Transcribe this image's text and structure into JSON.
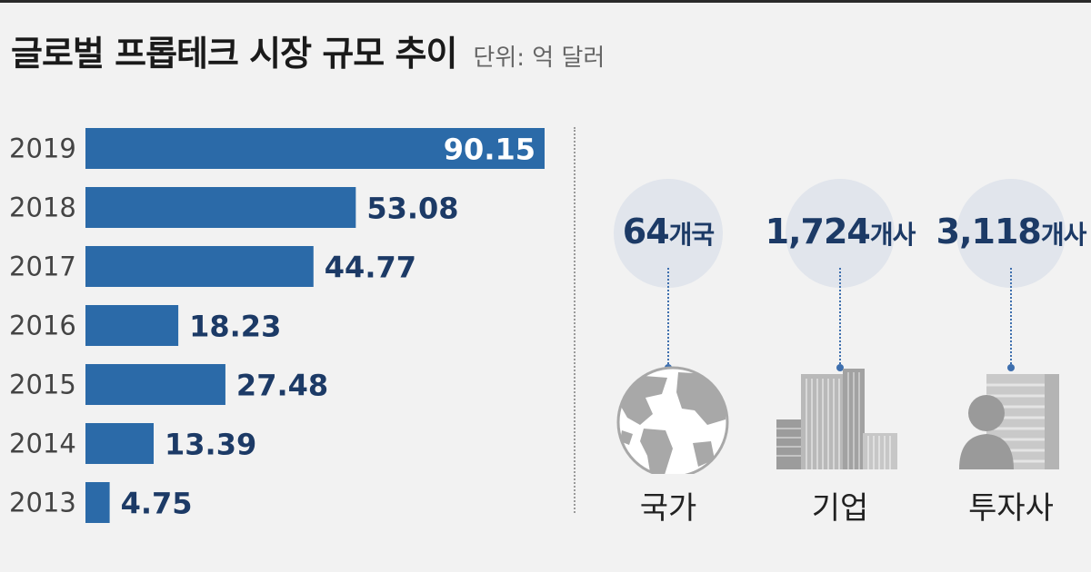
{
  "header": {
    "title": "글로벌 프롭테크 시장 규모 추이",
    "unit": "단위: 억 달러"
  },
  "chart_data": {
    "type": "bar",
    "orientation": "horizontal",
    "categories": [
      "2019",
      "2018",
      "2017",
      "2016",
      "2015",
      "2014",
      "2013"
    ],
    "values": [
      90.15,
      53.08,
      44.77,
      18.23,
      27.48,
      13.39,
      4.75
    ],
    "value_labels": [
      "90.15",
      "53.08",
      "44.77",
      "18.23",
      "27.48",
      "13.39",
      "4.75"
    ],
    "bar_color": "#2b6aa8",
    "value_label_color": "#1c3a66",
    "grid": false,
    "legend": "none"
  },
  "stats": [
    {
      "number": "64",
      "suffix": "개국",
      "label": "국가",
      "icon": "globe-icon"
    },
    {
      "number": "1,724",
      "suffix": "개사",
      "label": "기업",
      "icon": "buildings-icon"
    },
    {
      "number": "3,118",
      "suffix": "개사",
      "label": "투자사",
      "icon": "investor-icon"
    }
  ],
  "colors": {
    "accent": "#2b6aa8",
    "dark_navy": "#1c3a66",
    "circle": "#e1e5ec",
    "icon_gray": "#a8a8a8"
  }
}
